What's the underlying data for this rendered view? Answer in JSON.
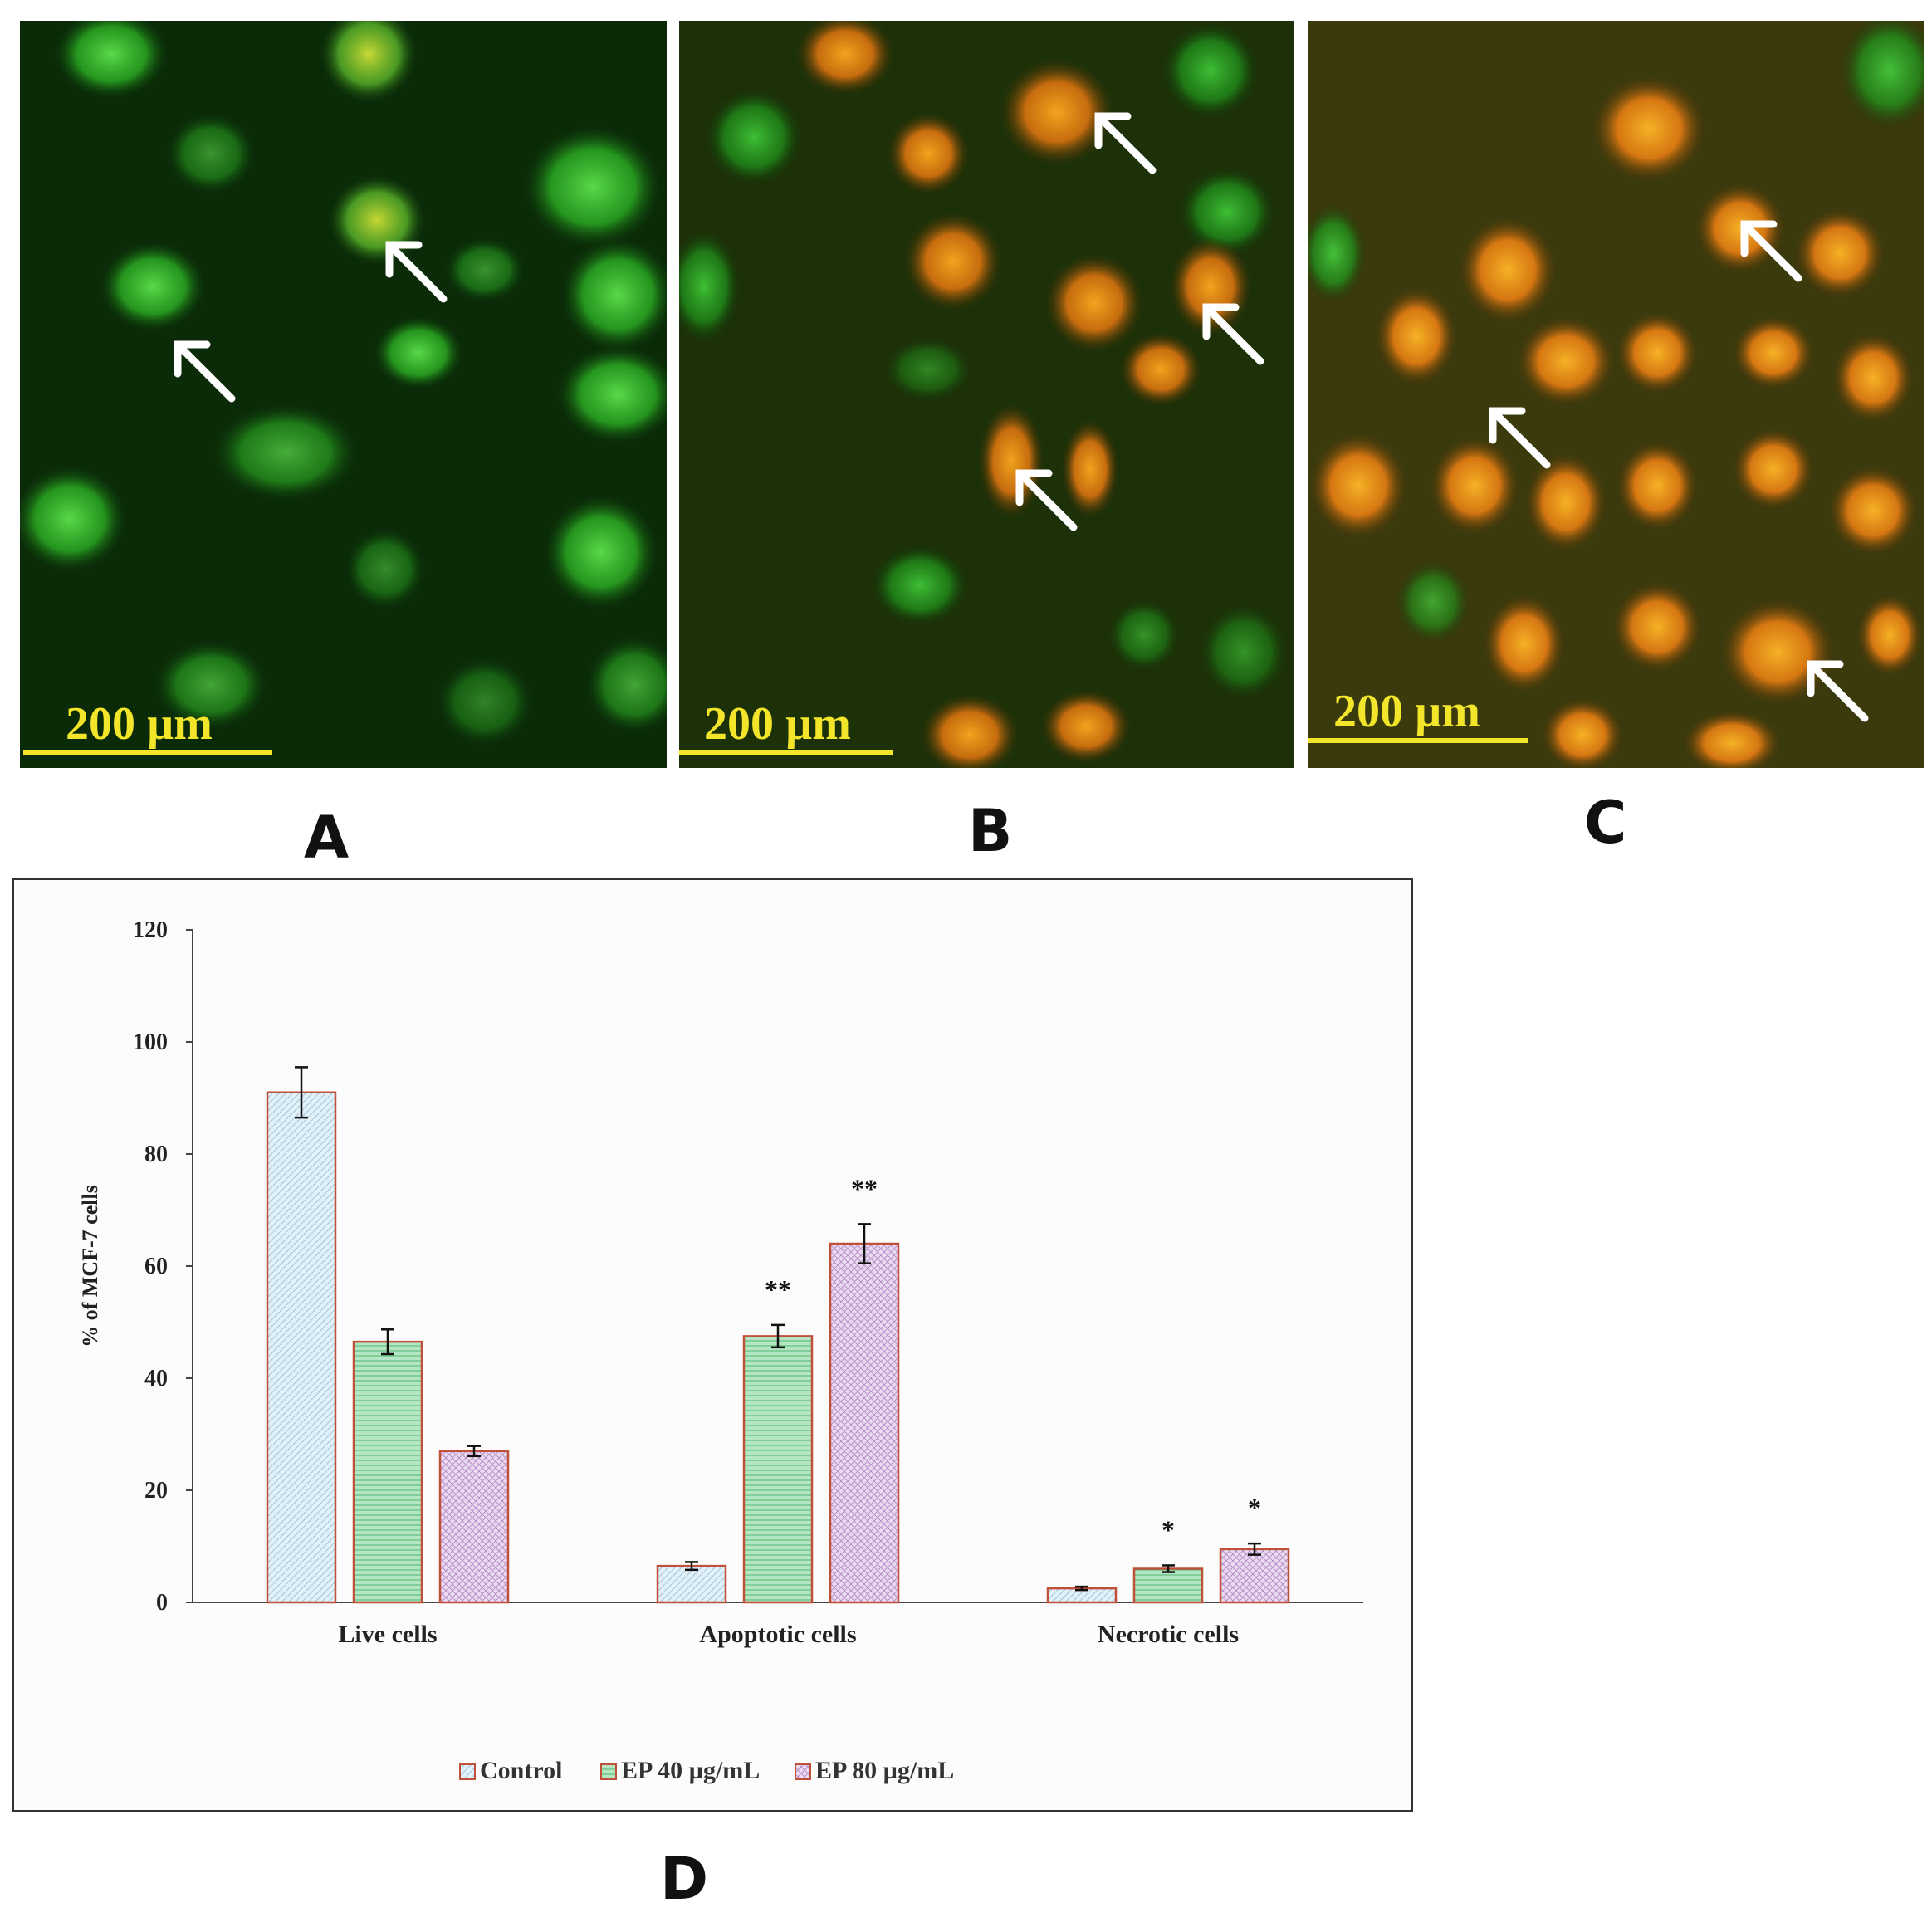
{
  "panels": [
    {
      "letter": "A",
      "scale_label": "200 µm"
    },
    {
      "letter": "B",
      "scale_label": "200 µm"
    },
    {
      "letter": "C",
      "scale_label": "200 µm"
    }
  ],
  "chart_panel_letter": "D",
  "colors": {
    "control": "#d6e9f3",
    "ep40": "#a9dfb9",
    "ep80": "#e2cde9",
    "bar_border": "#c0503a",
    "scale_bar": "#f2e52a",
    "live_green": "#2fbf2a",
    "apoptotic_orange": "#e8931c"
  },
  "chart_data": {
    "type": "bar",
    "title": "",
    "xlabel": "",
    "ylabel": "% of MCF-7 cells",
    "ylim": [
      0,
      120
    ],
    "yticks": [
      0,
      20,
      40,
      60,
      80,
      100,
      120
    ],
    "grid": false,
    "legend_position": "bottom",
    "categories": [
      "Live cells",
      "Apoptotic cells",
      "Necrotic cells"
    ],
    "series": [
      {
        "name": "Control",
        "values": [
          91,
          6.5,
          2.5
        ],
        "errors": [
          4.5,
          0.7,
          0.3
        ],
        "annotations": [
          "",
          "",
          ""
        ]
      },
      {
        "name": "EP 40 µg/mL",
        "values": [
          46.5,
          47.5,
          6
        ],
        "errors": [
          2.2,
          2.0,
          0.6
        ],
        "annotations": [
          "",
          "**",
          "*"
        ]
      },
      {
        "name": "EP 80 µg/mL",
        "values": [
          27,
          64,
          9.5
        ],
        "errors": [
          0.9,
          3.5,
          1.0
        ],
        "annotations": [
          "",
          "**",
          "*"
        ]
      }
    ]
  }
}
